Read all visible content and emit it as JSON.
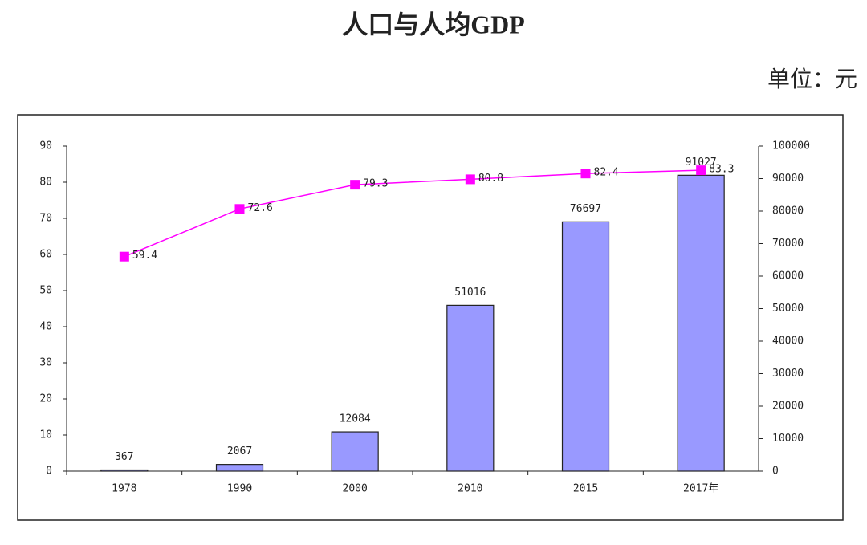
{
  "chart_data": {
    "type": "bar",
    "title": "人口与人均GDP",
    "unit": "单位：元",
    "categories": [
      "1978",
      "1990",
      "2000",
      "2010",
      "2015",
      "2017年"
    ],
    "series": [
      {
        "type": "bar",
        "axis": "y2",
        "color": "#9999ff",
        "values": [
          367,
          2067,
          12084,
          51016,
          76697,
          91027
        ]
      },
      {
        "type": "line",
        "axis": "y",
        "color": "#ff00ff",
        "values": [
          59.4,
          72.6,
          79.3,
          80.8,
          82.4,
          83.3
        ]
      }
    ],
    "ylim": [
      0,
      90
    ],
    "yticks": [
      0,
      10,
      20,
      30,
      40,
      50,
      60,
      70,
      80,
      90
    ],
    "y2lim": [
      0,
      100000
    ],
    "y2ticks": [
      0,
      10000,
      20000,
      30000,
      40000,
      50000,
      60000,
      70000,
      80000,
      90000,
      100000
    ],
    "grid": false
  }
}
